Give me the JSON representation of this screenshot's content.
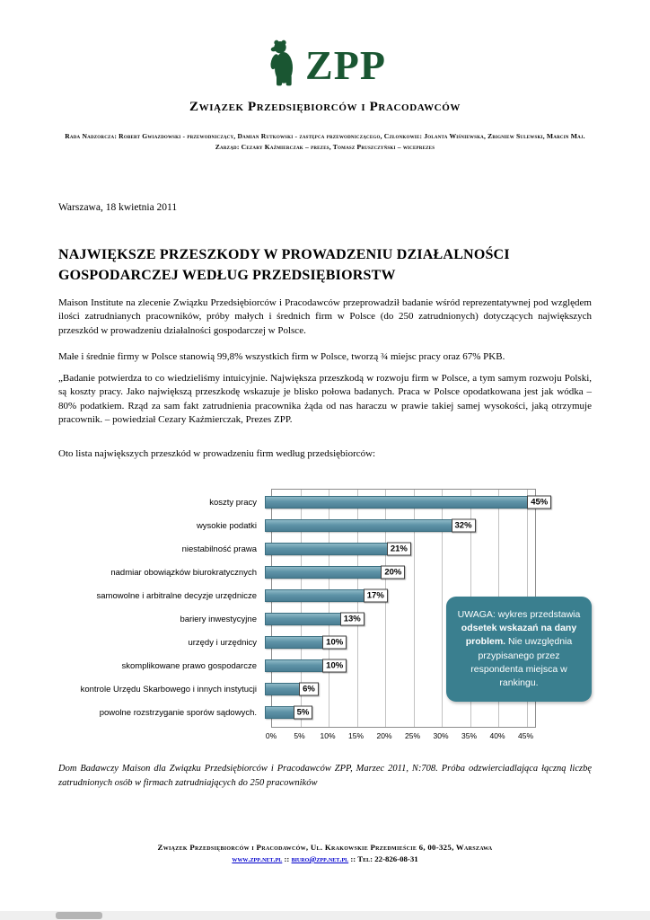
{
  "header": {
    "logo_text": "ZPP",
    "org_name": "Związek Przedsiębiorców i Pracodawców",
    "board_line": "Rada Nadzorcza: Robert Gwiazdowski - przewodniczący, Damian Rutkowski - zastępca przewodniczącego, Członkowie: Jolanta Wiśniewska, Zbigniew Sulewski, Marcin Maj. Zarząd: Cezary Kaźmierczak – prezes, Tomasz Pruszczyński – wiceprezes"
  },
  "date_line": "Warszawa, 18 kwietnia 2011",
  "title": "NAJWIĘKSZE PRZESZKODY W PROWADZENIU DZIAŁALNOŚCI GOSPODARCZEJ WEDŁUG PRZEDSIĘBIORSTW",
  "paragraphs": [
    "Maison Institute na zlecenie Związku Przedsiębiorców i Pracodawców przeprowadził badanie wśród reprezentatywnej pod względem ilości zatrudnianych pracowników, próby małych i średnich firm w Polsce (do 250 zatrudnionych) dotyczących największych przeszkód w prowadzeniu działalności gospodarczej w Polsce.",
    "Małe i średnie firmy w Polsce stanowią 99,8% wszystkich firm w Polsce, tworzą ¾ miejsc pracy oraz 67% PKB.",
    "„Badanie potwierdza to co wiedzieliśmy intuicyjnie. Największa przeszkodą w rozwoju firm w Polsce, a tym samym rozwoju Polski, są koszty pracy. Jako największą przeszkodę wskazuje je blisko połowa badanych. Praca w Polsce opodatkowana jest jak wódka – 80% podatkiem. Rząd za sam fakt zatrudnienia pracownika żąda od nas haraczu w prawie takiej samej wysokości, jaką otrzymuje pracownik. – powiedział Cezary Kaźmierczak, Prezes ZPP.",
    "Oto lista największych przeszkód w prowadzeniu firm według przedsiębiorców:"
  ],
  "chart_data": {
    "type": "bar",
    "orientation": "horizontal",
    "categories": [
      "koszty pracy",
      "wysokie podatki",
      "niestabilność prawa",
      "nadmiar obowiązków biurokratycznych",
      "samowolne i arbitralne decyzje urzędnicze",
      "bariery inwestycyjne",
      "urzędy i urzędnicy",
      "skomplikowane prawo gospodarcze",
      "kontrole Urzędu Skarbowego i innych instytucji",
      "powolne rozstrzyganie sporów sądowych."
    ],
    "values": [
      45,
      32,
      21,
      20,
      17,
      13,
      10,
      10,
      6,
      5
    ],
    "value_suffix": "%",
    "ticks": [
      0,
      5,
      10,
      15,
      20,
      25,
      30,
      35,
      40,
      45
    ],
    "axis_max": 46.5,
    "xlim": [
      0,
      46.5
    ],
    "grid": true,
    "bar_color": "#5e93a7",
    "bar_border_color": "#3a6e80"
  },
  "callout": {
    "pre": "UWAGA: wykres przedstawia ",
    "bold": "odsetek wskazań na dany problem.",
    "post": " Nie uwzględnia przypisanego przez respondenta miejsca w rankingu."
  },
  "footnote": "Dom Badawczy Maison  dla Związku Przedsiębiorców i Pracodawców ZPP,  Marzec 2011, N:708. Próba odzwierciadlająca łączną liczbę zatrudnionych osób w firmach zatrudniających do 250 pracowników",
  "footer": {
    "address": "Związek Przedsiębiorców i Pracodawców, Ul. Krakowskie Przedmieście 6,  00-325, Warszawa",
    "url": "www.zpp.net.pl",
    "sep": "::",
    "email": "biuro@zpp.net.pl",
    "tel": "Tel: 22-826-08-31"
  },
  "colors": {
    "brand_green": "#1a5632",
    "bar_teal": "#5e93a7",
    "callout_teal": "#3a7f8f",
    "link_blue": "#0000cc"
  }
}
